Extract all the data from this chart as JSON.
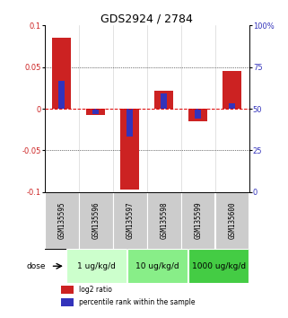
{
  "title": "GDS2924 / 2784",
  "samples": [
    "GSM135595",
    "GSM135596",
    "GSM135597",
    "GSM135598",
    "GSM135599",
    "GSM135600"
  ],
  "log2_ratio": [
    0.085,
    -0.008,
    -0.097,
    0.022,
    -0.015,
    0.045
  ],
  "percentile_rank": [
    0.033,
    -0.006,
    -0.033,
    0.018,
    -0.012,
    0.006
  ],
  "bar_width": 0.55,
  "blue_bar_width": 0.18,
  "ylim": [
    -0.1,
    0.1
  ],
  "y2lim": [
    0,
    100
  ],
  "y_ticks": [
    -0.1,
    -0.05,
    0,
    0.05,
    0.1
  ],
  "y2_ticks": [
    0,
    25,
    50,
    75,
    100
  ],
  "ytick_labels_left": [
    "-0.1",
    "-0.05",
    "0",
    "0.05",
    "0.1"
  ],
  "ytick_labels_right": [
    "0",
    "25",
    "50",
    "75",
    "100%"
  ],
  "red_color": "#cc2222",
  "blue_color": "#3333bb",
  "doses": [
    {
      "label": "1 ug/kg/d",
      "samples": [
        0,
        1
      ],
      "color": "#ccffcc"
    },
    {
      "label": "10 ug/kg/d",
      "samples": [
        2,
        3
      ],
      "color": "#88ee88"
    },
    {
      "label": "1000 ug/kg/d",
      "samples": [
        4,
        5
      ],
      "color": "#44cc44"
    }
  ],
  "dose_label": "dose",
  "legend_red": "log2 ratio",
  "legend_blue": "percentile rank within the sample",
  "hline_color": "#dd0000",
  "title_fontsize": 9,
  "tick_fontsize": 6,
  "label_fontsize": 5.5,
  "dose_fontsize": 6.5,
  "legend_fontsize": 5.5
}
